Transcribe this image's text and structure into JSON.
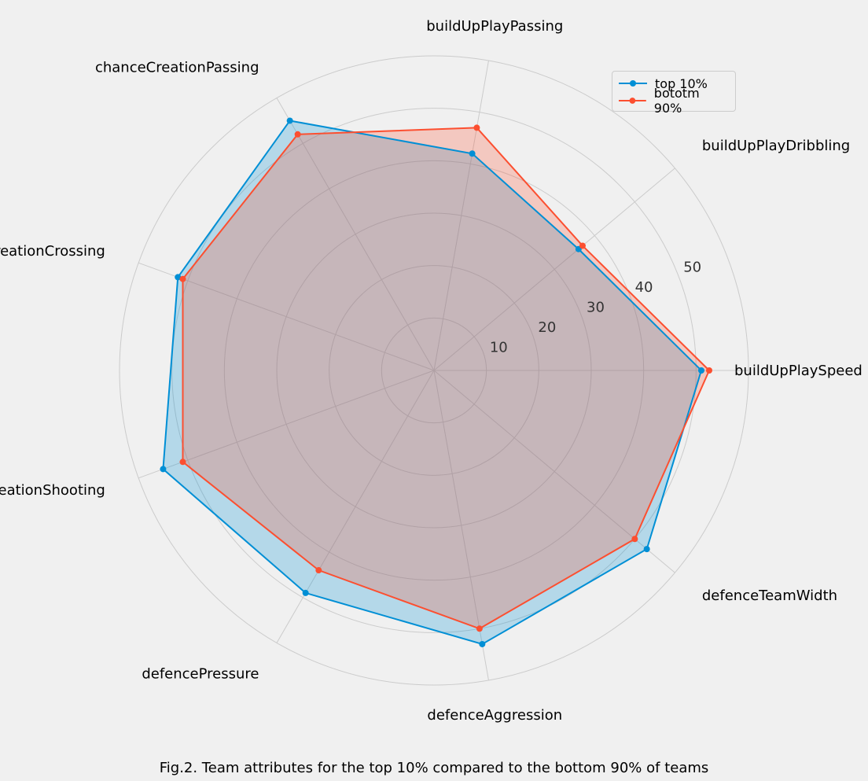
{
  "chart_data": {
    "type": "radar",
    "axes": [
      "buildUpPlaySpeed",
      "buildUpPlayDribbling",
      "buildUpPlayPassing",
      "chanceCreationPassing",
      "chanceCreationCrossing",
      "chanceCreationShooting",
      "defencePressure",
      "defenceAggression",
      "defenceTeamWidth"
    ],
    "series": [
      {
        "name": "top 10%",
        "color": "#008fd5",
        "values": [
          51,
          36,
          42,
          55,
          52,
          55,
          49,
          53,
          53
        ]
      },
      {
        "name": "bototm 90%",
        "color": "#fc4f30",
        "values": [
          52.5,
          37,
          47,
          52,
          51,
          51,
          44,
          50,
          50
        ]
      }
    ],
    "rticks": [
      10,
      20,
      30,
      40,
      50
    ],
    "rlim": [
      0,
      60
    ],
    "grid": true,
    "legend_position": "top-right",
    "caption": "Fig.2. Team attributes for the top 10% compared to the bottom 90% of teams"
  }
}
